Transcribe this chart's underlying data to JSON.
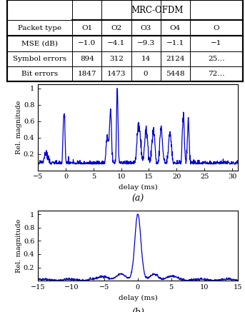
{
  "table": {
    "mrc_header": "MRC-OFDM",
    "row0": [
      "Packet type",
      "O1",
      "O2",
      "O3",
      "O4",
      "O"
    ],
    "row1": [
      "MSE (dB)",
      "−1.0",
      "−4.1",
      "−9.3",
      "−1.1",
      "−1"
    ],
    "row2": [
      "Symbol errors",
      "894",
      "312",
      "14",
      "2124",
      "25…"
    ],
    "row3": [
      "Bit errors",
      "1847",
      "1473",
      "0",
      "5448",
      "72…"
    ]
  },
  "plot_a": {
    "xlabel": "delay (ms)",
    "ylabel": "Rel. magnitude",
    "xlim": [
      -5,
      31
    ],
    "ylim": [
      0,
      1.05
    ],
    "xticks": [
      -5,
      0,
      5,
      10,
      15,
      20,
      25,
      30
    ],
    "yticks": [
      0.2,
      0.4,
      0.6,
      0.8,
      1.0
    ],
    "ytick_labels": [
      "0.2",
      "0.4",
      "0.6",
      "0.8",
      "1"
    ],
    "label": "(a)"
  },
  "plot_b": {
    "xlabel": "delay (ms)",
    "ylabel": "Rel. magnitude",
    "xlim": [
      -15,
      15
    ],
    "ylim": [
      0,
      1.05
    ],
    "xticks": [
      -15,
      -10,
      -5,
      0,
      5,
      10,
      15
    ],
    "yticks": [
      0.2,
      0.4,
      0.6,
      0.8,
      1.0
    ],
    "ytick_labels": [
      "0.2",
      "0.4",
      "0.6",
      "0.8",
      "1"
    ],
    "label": "(b)"
  },
  "line_color": "#0000cc",
  "bg_color": "#ffffff"
}
